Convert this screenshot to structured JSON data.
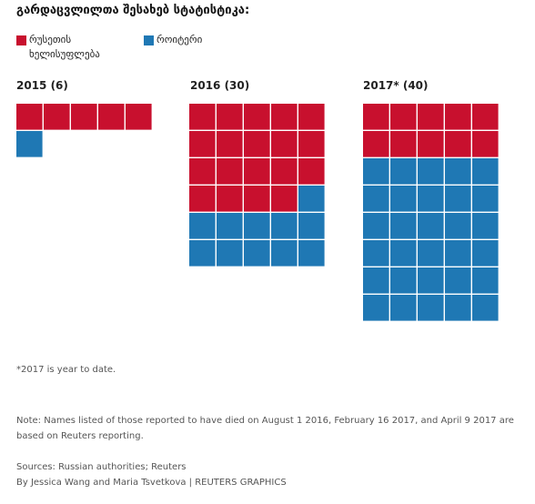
{
  "title": "გარდაცვლილთა შესახებ სტატისტიკა:",
  "legend": [
    {
      "label": "რუსეთის ხელისუფლება",
      "color": "#c8102e"
    },
    {
      "label": "როიტერი",
      "color": "#1f78b4"
    }
  ],
  "chart_data": {
    "type": "waffle",
    "series_names": [
      "რუსეთის ხელისუფლება",
      "როიტერი"
    ],
    "panels": [
      {
        "label": "2015 (6)",
        "total": 6,
        "russian_authorities": 5,
        "reuters": 1,
        "columns": 5
      },
      {
        "label": "2016 (30)",
        "total": 30,
        "russian_authorities": 19,
        "reuters": 11,
        "columns": 5
      },
      {
        "label": "2017* (40)",
        "total": 40,
        "russian_authorities": 10,
        "reuters": 30,
        "columns": 5
      }
    ]
  },
  "footnotes": {
    "asterisk": "*2017 is year to date.",
    "note_line1": "Note: Names listed of those reported to have died on August 1 2016, February 16 2017, and April 9 2017 are",
    "note_line2": "based on Reuters reporting.",
    "sources": "Sources: Russian authorities; Reuters",
    "byline": "By Jessica Wang and Maria Tsvetkova | REUTERS GRAPHICS"
  }
}
